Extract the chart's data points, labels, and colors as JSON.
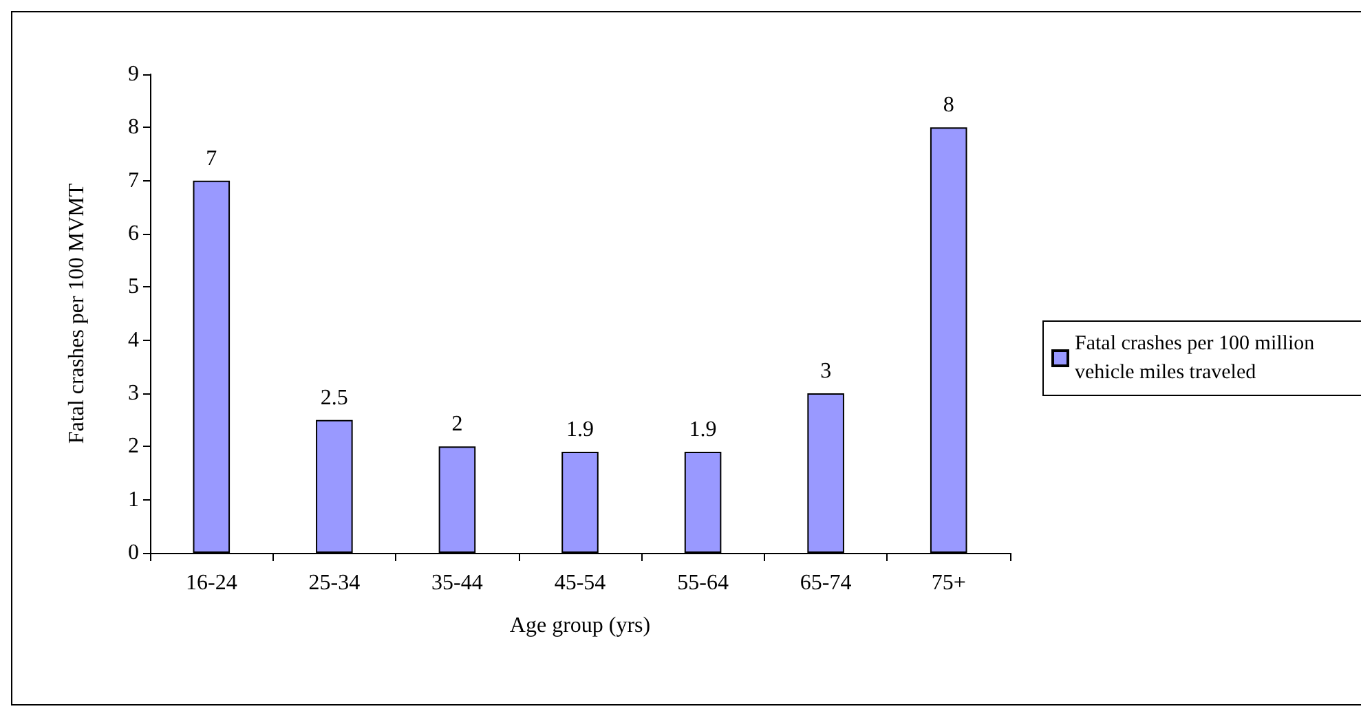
{
  "chart_data": {
    "type": "bar",
    "xlabel": "Age group (yrs)",
    "ylabel": "Fatal crashes per 100 MVMT",
    "categories": [
      "16-24",
      "25-34",
      "35-44",
      "45-54",
      "55-64",
      "65-74",
      "75+"
    ],
    "series": [
      {
        "name": "Fatal crashes per 100 million vehicle miles traveled",
        "color": "#9999ff",
        "values": [
          7,
          2.5,
          2,
          1.9,
          1.9,
          3,
          8
        ]
      }
    ],
    "ylim": [
      0,
      9
    ],
    "yticks": [
      0,
      1,
      2,
      3,
      4,
      5,
      6,
      7,
      8,
      9
    ],
    "grid": false,
    "legend": "right",
    "data_labels": true
  }
}
